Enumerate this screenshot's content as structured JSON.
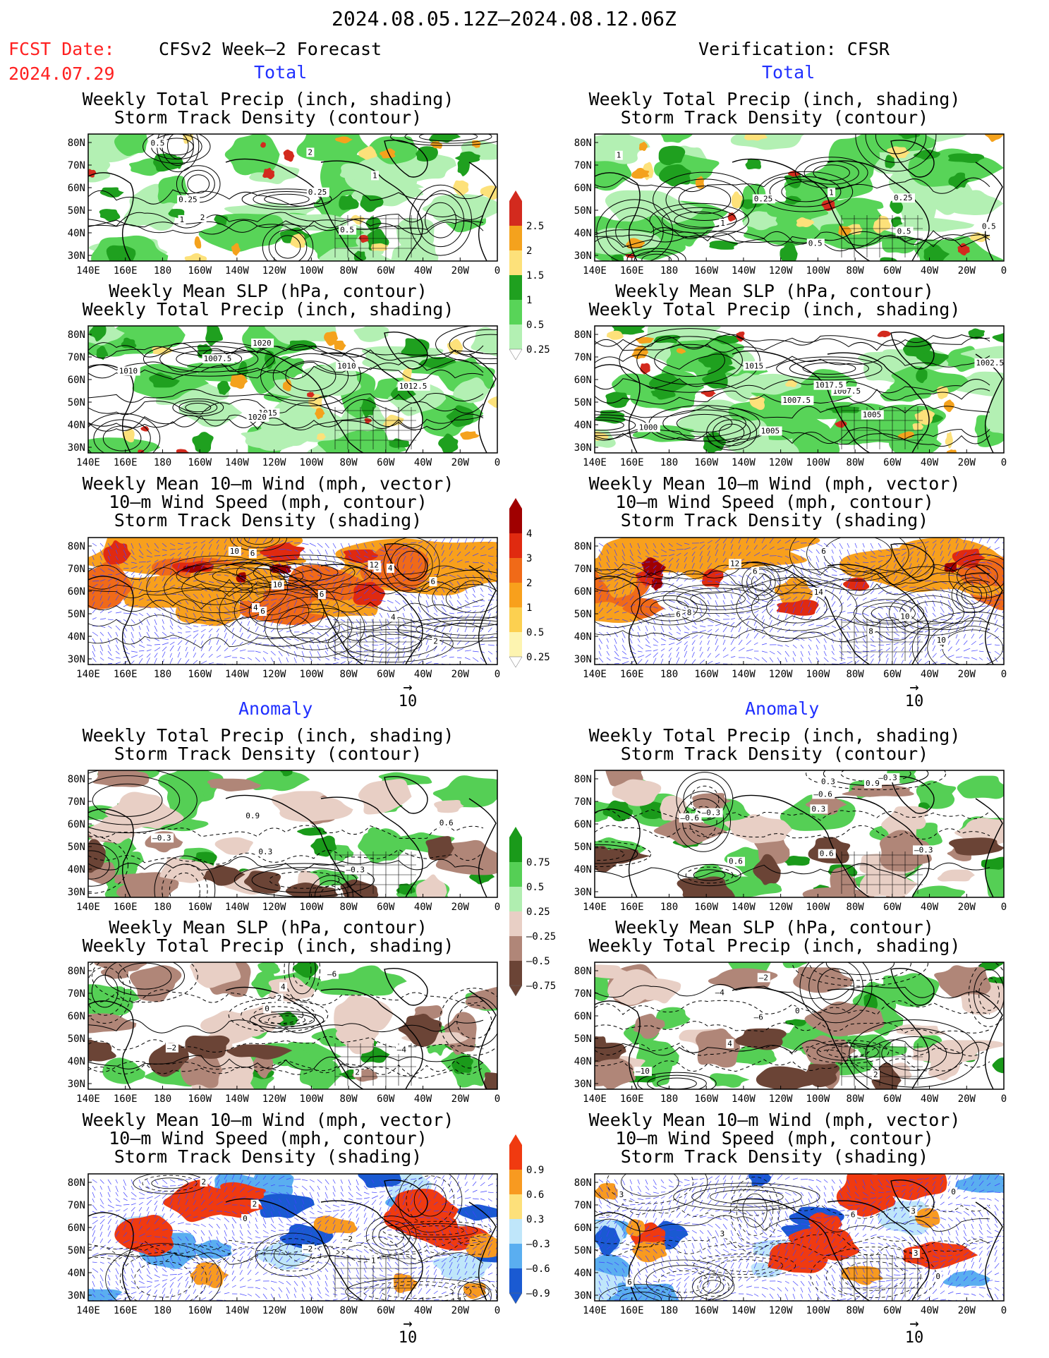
{
  "header": {
    "period": "2024.08.05.12Z–2024.08.12.06Z",
    "fcst_label": "FCST Date:",
    "fcst_date": "2024.07.29",
    "left_title": "CFSv2 Week–2 Forecast",
    "right_title": "Verification: CFSR"
  },
  "sections": {
    "total": "Total",
    "anomaly": "Anomaly"
  },
  "titles": {
    "precip_storm": [
      "Weekly Total Precip (inch, shading)",
      "Storm Track Density (contour)"
    ],
    "slp_precip": [
      "Weekly Mean SLP (hPa, contour)",
      "Weekly Total Precip (inch, shading)"
    ],
    "wind_storm": [
      "Weekly Mean 10–m Wind (mph, vector)",
      "10–m Wind Speed (mph, contour)",
      "Storm Track Density (shading)"
    ]
  },
  "axes": {
    "lat_labels": [
      "80N",
      "70N",
      "60N",
      "50N",
      "40N",
      "30N"
    ],
    "lon_labels": [
      "140E",
      "160E",
      "180",
      "160W",
      "140W",
      "120W",
      "100W",
      "80W",
      "60W",
      "40W",
      "20W",
      "0"
    ]
  },
  "vector_ref": "10",
  "colorbars": {
    "precip_total": {
      "labels": [
        "2.5",
        "2",
        "1.5",
        "1",
        "0.5",
        "0.25"
      ],
      "colors": [
        "#d32a1e",
        "#f4a21d",
        "#fde17a",
        "#1fa01f",
        "#58d458",
        "#b3f0b3"
      ]
    },
    "storm_total": {
      "labels": [
        "4",
        "3",
        "2",
        "1",
        "0.5",
        "0.25"
      ],
      "colors": [
        "#a00000",
        "#e02a10",
        "#f06a18",
        "#f8a01c",
        "#fcd050",
        "#fdf4b0"
      ]
    },
    "precip_anom": {
      "labels": [
        "0.75",
        "0.5",
        "0.25",
        "–0.25",
        "–0.5",
        "–0.75"
      ],
      "colors": [
        "#1a9a1a",
        "#55cf55",
        "#b0eeb0",
        "#e8cfc5",
        "#b08678",
        "#6b4436"
      ]
    },
    "storm_anom": {
      "labels": [
        "0.9",
        "0.6",
        "0.3",
        "–0.3",
        "–0.6",
        "–0.9"
      ],
      "colors": [
        "#f03a10",
        "#f89a20",
        "#fde07a",
        "#bfe6fa",
        "#5aaef0",
        "#1a5ad2"
      ]
    }
  },
  "panels": {
    "fc_precip": {
      "labels": [
        "2",
        "0.25",
        "0.25",
        "0.5",
        "1",
        "2",
        "1",
        "0.5"
      ]
    },
    "fc_slp": {
      "labels": [
        "1012.5",
        "1015",
        "1010",
        "1010",
        "1007.5",
        "1020",
        "1020"
      ]
    },
    "fc_wind": {
      "labels": [
        "6",
        "4",
        "4",
        "6",
        "8",
        "2",
        "10",
        "12",
        "6",
        "6",
        "4",
        "10"
      ]
    },
    "vf_precip": {
      "labels": [
        "1",
        "0.25",
        "0.5",
        "0.25",
        "0.5",
        "1",
        "0.5",
        "1"
      ]
    },
    "vf_slp": {
      "labels": [
        "1007.5",
        "1005",
        "1005",
        "1007.5",
        "1015",
        "1017.5",
        "1002.5",
        "1000"
      ]
    },
    "vf_wind": {
      "labels": [
        "4",
        "6",
        "8",
        "6",
        "10",
        "12",
        "14",
        "10",
        "6",
        "8"
      ]
    },
    "fa_precip": {
      "labels": [
        "0.9",
        "–0.3",
        "–0.3",
        "0.6",
        "0.3"
      ]
    },
    "fa_slp": {
      "labels": [
        "–2",
        "–4",
        "0",
        "–6",
        "2",
        "2",
        "4"
      ]
    },
    "fa_wind": {
      "labels": [
        "2",
        "2",
        "–2",
        "1",
        "0",
        "–2"
      ]
    },
    "va_precip": {
      "labels": [
        "–0.6",
        "0.3",
        "–0.3",
        "0.9",
        "0.6",
        "–0.3",
        "–0.6",
        "–0.3",
        "0.6",
        "0.3"
      ]
    },
    "va_slp": {
      "labels": [
        "–6",
        "–4",
        "–2",
        "0",
        "–10",
        "2",
        "4"
      ]
    },
    "va_wind": {
      "labels": [
        "3",
        "6",
        "0",
        "0",
        "3",
        "3",
        "6",
        "3"
      ]
    }
  }
}
